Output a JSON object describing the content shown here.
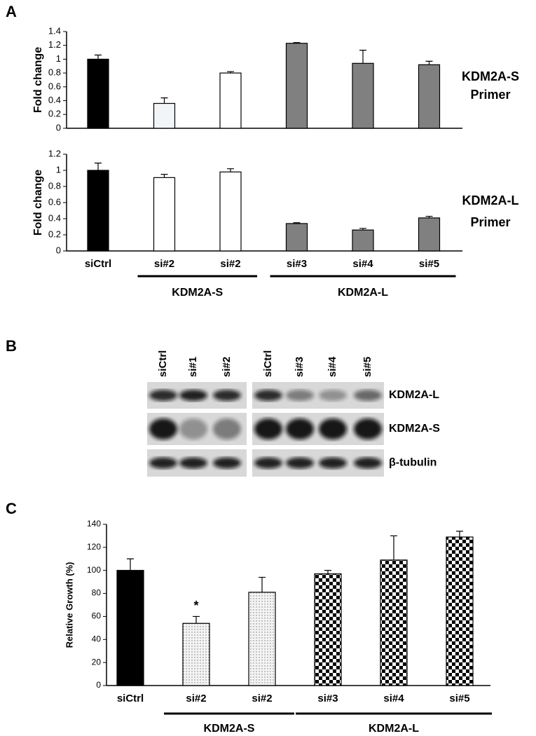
{
  "panel_labels": [
    "A",
    "B",
    "C"
  ],
  "chart_data": [
    {
      "type": "bar",
      "y_label": "Fold change",
      "annotation": [
        "KDM2A-S",
        "Primer"
      ],
      "values": [
        1.0,
        0.36,
        0.8,
        1.23,
        0.94,
        0.92
      ],
      "errors": [
        0.06,
        0.08,
        0.02,
        0.01,
        0.19,
        0.05
      ],
      "colors": [
        "#000000",
        "#f2f5f8",
        "#ffffff",
        "#808080",
        "#808080",
        "#808080"
      ],
      "ylim": [
        0,
        1.4
      ],
      "yticks": [
        0,
        0.2,
        0.4,
        0.6,
        0.8,
        1,
        1.2,
        1.4
      ]
    },
    {
      "type": "bar",
      "y_label": "Fold change",
      "annotation": [
        "KDM2A-L",
        "Primer"
      ],
      "categories": [
        "siCtrl",
        "si#2",
        "si#2",
        "si#3",
        "si#4",
        "si#5"
      ],
      "values": [
        1.0,
        0.91,
        0.98,
        0.34,
        0.26,
        0.41
      ],
      "errors": [
        0.09,
        0.04,
        0.04,
        0.01,
        0.02,
        0.02
      ],
      "colors": [
        "#000000",
        "#ffffff",
        "#ffffff",
        "#808080",
        "#808080",
        "#808080"
      ],
      "ylim": [
        0,
        1.2
      ],
      "yticks": [
        0,
        0.2,
        0.4,
        0.6,
        0.8,
        1,
        1.2
      ],
      "groups": [
        "KDM2A-S",
        "KDM2A-L"
      ]
    },
    {
      "type": "bar",
      "y_label": "Relative Growth (%)",
      "annotation": [
        "*"
      ],
      "categories": [
        "siCtrl",
        "si#2",
        "si#2",
        "si#3",
        "si#4",
        "si#5"
      ],
      "values": [
        100,
        54,
        81,
        97,
        109,
        129
      ],
      "errors": [
        10,
        6,
        13,
        3,
        21,
        5
      ],
      "colors": [
        "#000000",
        "dots",
        "dots",
        "checker",
        "checker",
        "checker"
      ],
      "ylim": [
        0,
        140
      ],
      "yticks": [
        0,
        20,
        40,
        60,
        80,
        100,
        120,
        140
      ],
      "groups": [
        "KDM2A-S",
        "KDM2A-L"
      ]
    }
  ],
  "blot": {
    "lanes": [
      "siCtrl",
      "si#1",
      "si#2",
      "siCtrl",
      "si#3",
      "si#4",
      "si#5"
    ],
    "rows": [
      "KDM2A-L",
      "KDM2A-S",
      "β-tubulin"
    ]
  }
}
